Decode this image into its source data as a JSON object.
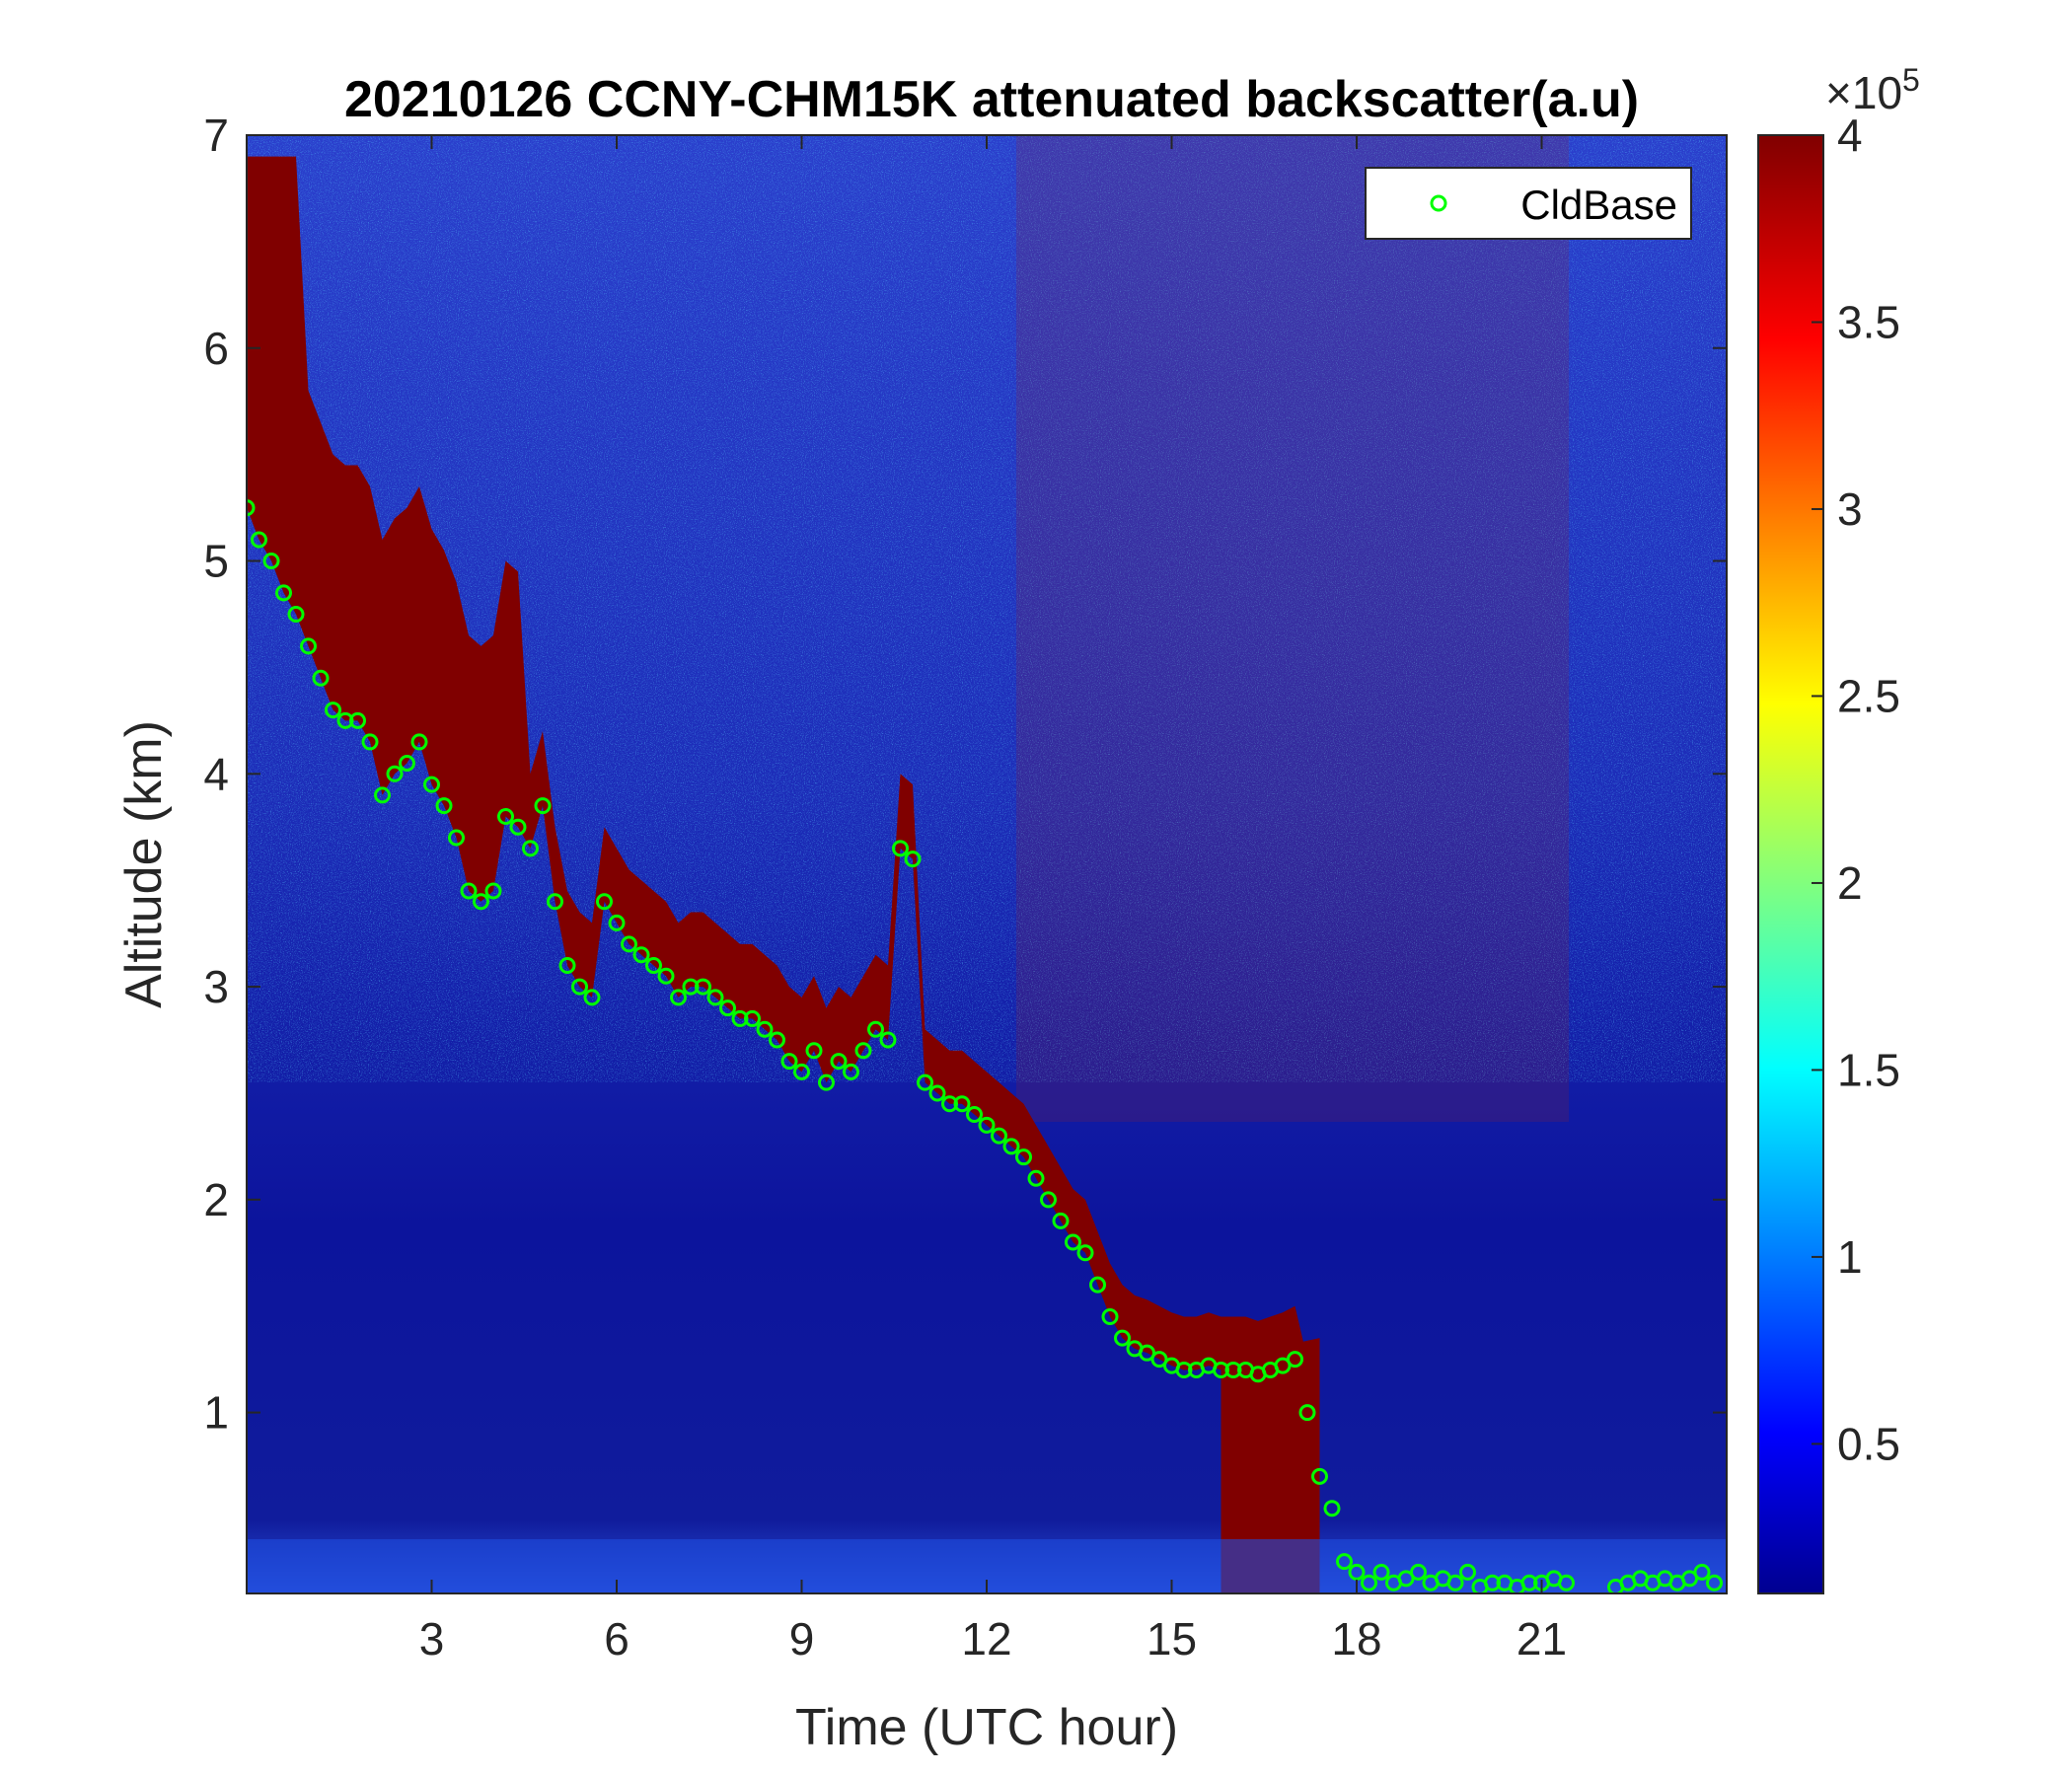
{
  "chart_data": {
    "type": "heatmap",
    "title": "20210126 CCNY-CHM15K attenuated backscatter(a.u)",
    "xlabel": "Time (UTC hour)",
    "ylabel": "Altitude (km)",
    "xlim": [
      0,
      24
    ],
    "ylim": [
      0.15,
      7
    ],
    "xticks": [
      3,
      6,
      9,
      12,
      15,
      18,
      21
    ],
    "yticks": [
      1,
      2,
      3,
      4,
      5,
      6,
      7
    ],
    "grid": false,
    "colorbar": {
      "colormap": "jet",
      "range": [
        0.1,
        4
      ],
      "ticks": [
        0.5,
        1,
        1.5,
        2,
        2.5,
        3,
        3.5,
        4
      ],
      "exponent_label": "×10",
      "exponent_power": "5"
    },
    "legend": {
      "placement": "top-right",
      "entries": [
        "CldBase"
      ]
    },
    "series": [
      {
        "name": "CldBase",
        "marker": "circle",
        "color": "#00ff00",
        "x": [
          0.0,
          0.2,
          0.4,
          0.6,
          0.8,
          1.0,
          1.2,
          1.4,
          1.6,
          1.8,
          2.0,
          2.2,
          2.4,
          2.6,
          2.8,
          3.0,
          3.2,
          3.4,
          3.6,
          3.8,
          4.0,
          4.2,
          4.4,
          4.6,
          4.8,
          5.0,
          5.2,
          5.4,
          5.6,
          5.8,
          6.0,
          6.2,
          6.4,
          6.6,
          6.8,
          7.0,
          7.2,
          7.4,
          7.6,
          7.8,
          8.0,
          8.2,
          8.4,
          8.6,
          8.8,
          9.0,
          9.2,
          9.4,
          9.6,
          9.8,
          10.0,
          10.2,
          10.4,
          10.6,
          10.8,
          11.0,
          11.2,
          11.4,
          11.6,
          11.8,
          12.0,
          12.2,
          12.4,
          12.6,
          12.8,
          13.0,
          13.2,
          13.4,
          13.6,
          13.8,
          14.0,
          14.2,
          14.4,
          14.6,
          14.8,
          15.0,
          15.2,
          15.4,
          15.6,
          15.8,
          16.0,
          16.2,
          16.4,
          16.6,
          16.8,
          17.0,
          17.2,
          17.4,
          17.6,
          17.8,
          18.0,
          18.2,
          18.4,
          18.6,
          18.8,
          19.0,
          19.2,
          19.4,
          19.6,
          19.8,
          20.0,
          20.2,
          20.4,
          20.6,
          20.8,
          21.0,
          21.2,
          21.4,
          22.2,
          22.4,
          22.6,
          22.8,
          23.0,
          23.2,
          23.4,
          23.6,
          23.8
        ],
        "y": [
          5.25,
          5.1,
          5.0,
          4.85,
          4.75,
          4.6,
          4.45,
          4.3,
          4.25,
          4.25,
          4.15,
          3.9,
          4.0,
          4.05,
          4.15,
          3.95,
          3.85,
          3.7,
          3.45,
          3.4,
          3.45,
          3.8,
          3.75,
          3.65,
          3.85,
          3.4,
          3.1,
          3.0,
          2.95,
          3.4,
          3.3,
          3.2,
          3.15,
          3.1,
          3.05,
          2.95,
          3.0,
          3.0,
          2.95,
          2.9,
          2.85,
          2.85,
          2.8,
          2.75,
          2.65,
          2.6,
          2.7,
          2.55,
          2.65,
          2.6,
          2.7,
          2.8,
          2.75,
          3.65,
          3.6,
          2.55,
          2.5,
          2.45,
          2.45,
          2.4,
          2.35,
          2.3,
          2.25,
          2.2,
          2.1,
          2.0,
          1.9,
          1.8,
          1.75,
          1.6,
          1.45,
          1.35,
          1.3,
          1.28,
          1.25,
          1.22,
          1.2,
          1.2,
          1.22,
          1.2,
          1.2,
          1.2,
          1.18,
          1.2,
          1.22,
          1.25,
          1.0,
          0.7,
          0.55,
          0.3,
          0.25,
          0.2,
          0.25,
          0.2,
          0.22,
          0.25,
          0.2,
          0.22,
          0.2,
          0.25,
          0.18,
          0.2,
          0.2,
          0.18,
          0.2,
          0.2,
          0.22,
          0.2,
          0.18,
          0.2,
          0.22,
          0.2,
          0.22,
          0.2,
          0.22,
          0.25,
          0.2
        ]
      }
    ]
  }
}
